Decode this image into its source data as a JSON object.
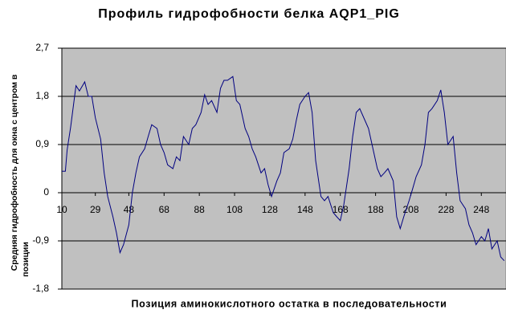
{
  "chart_data": {
    "type": "line",
    "title": "Профиль гидрофобности белка AQP1_PIG",
    "xlabel": "Позиция аминокислотного остатка в последовательности",
    "ylabel": [
      "Средняя гидрофобность для окна с центром в",
      "позиции"
    ],
    "x": [
      10,
      12,
      13,
      15,
      18,
      20,
      23,
      25,
      27,
      29,
      32,
      34,
      36,
      39,
      41,
      43,
      45,
      48,
      50,
      52,
      54,
      57,
      59,
      61,
      64,
      66,
      68,
      70,
      73,
      75,
      77,
      79,
      82,
      84,
      86,
      89,
      91,
      93,
      95,
      98,
      100,
      102,
      104,
      107,
      109,
      111,
      114,
      116,
      118,
      120,
      123,
      125,
      127,
      129,
      132,
      134,
      136,
      139,
      141,
      143,
      145,
      148,
      150,
      152,
      154,
      157,
      159,
      161,
      164,
      166,
      168,
      170,
      173,
      175,
      177,
      179,
      182,
      184,
      186,
      189,
      191,
      193,
      195,
      198,
      200,
      202,
      204,
      207,
      209,
      211,
      214,
      216,
      218,
      220,
      223,
      225,
      227,
      229,
      232,
      234,
      236,
      239,
      241,
      243,
      245,
      248,
      250,
      252,
      254,
      257,
      259,
      261
    ],
    "values": [
      0.4,
      0.4,
      0.8,
      1.23,
      2.0,
      1.9,
      2.07,
      1.8,
      1.8,
      1.4,
      1.0,
      0.37,
      -0.07,
      -0.45,
      -0.75,
      -1.12,
      -0.97,
      -0.6,
      0,
      0.37,
      0.67,
      0.82,
      1.05,
      1.27,
      1.2,
      0.9,
      0.75,
      0.52,
      0.45,
      0.67,
      0.6,
      1.05,
      0.9,
      1.2,
      1.27,
      1.5,
      1.83,
      1.65,
      1.72,
      1.5,
      1.95,
      2.1,
      2.1,
      2.17,
      1.72,
      1.65,
      1.2,
      1.05,
      0.82,
      0.67,
      0.37,
      0.45,
      0.15,
      -0.07,
      0.22,
      0.37,
      0.75,
      0.82,
      1.0,
      1.35,
      1.65,
      1.8,
      1.87,
      1.5,
      0.6,
      -0.07,
      -0.15,
      -0.07,
      -0.37,
      -0.45,
      -0.52,
      -0.22,
      0.45,
      1.05,
      1.5,
      1.57,
      1.35,
      1.2,
      0.9,
      0.45,
      0.3,
      0.37,
      0.45,
      0.22,
      -0.45,
      -0.67,
      -0.45,
      -0.15,
      0.07,
      0.3,
      0.52,
      0.9,
      1.5,
      1.57,
      1.72,
      1.92,
      1.5,
      0.9,
      1.05,
      0.37,
      -0.15,
      -0.3,
      -0.6,
      -0.75,
      -0.97,
      -0.82,
      -0.9,
      -0.67,
      -1.05,
      -0.9,
      -1.2,
      -1.27
    ],
    "color": "#000080",
    "xlim": [
      10,
      262
    ],
    "xticks": [
      10,
      29,
      48,
      68,
      88,
      108,
      128,
      148,
      168,
      188,
      208,
      228,
      248
    ],
    "ylim": [
      -1.8,
      2.7
    ],
    "yticks": [
      {
        "value": -1.8,
        "label": "-1,8"
      },
      {
        "value": -0.9,
        "label": "-0,9"
      },
      0,
      {
        "value": 0.9,
        "label": "0,9"
      },
      {
        "value": 1.8,
        "label": "1,8"
      },
      {
        "value": 2.7,
        "label": "2,7"
      }
    ],
    "grid": true
  }
}
